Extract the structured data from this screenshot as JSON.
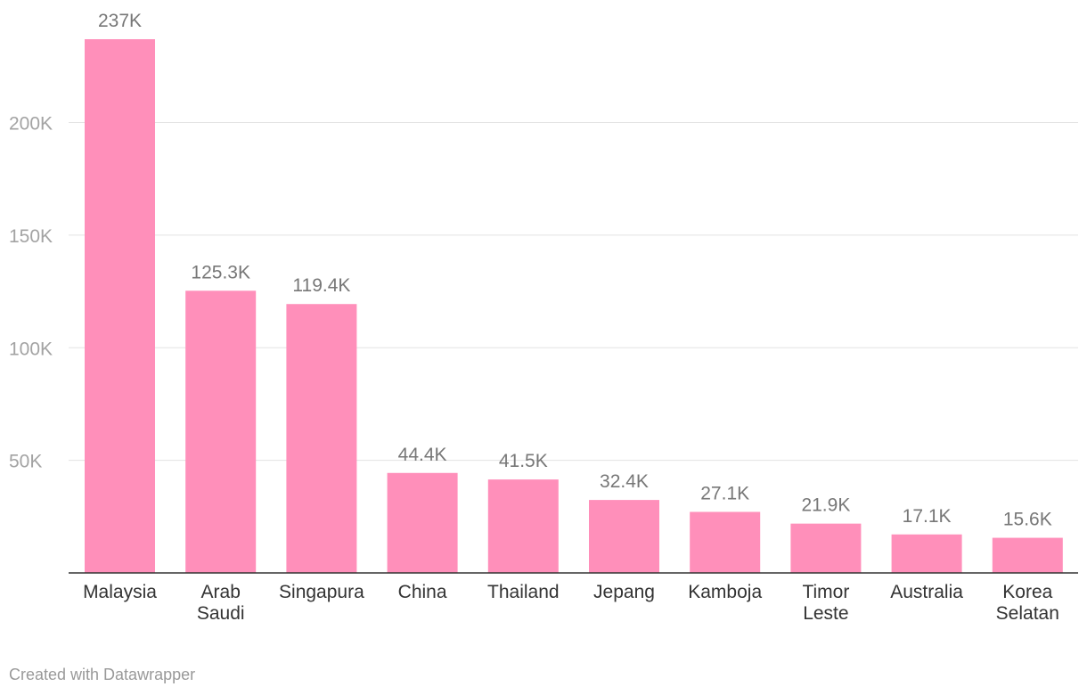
{
  "chart_data": {
    "type": "bar",
    "categories": [
      [
        "Malaysia"
      ],
      [
        "Arab",
        "Saudi"
      ],
      [
        "Singapura"
      ],
      [
        "China"
      ],
      [
        "Thailand"
      ],
      [
        "Jepang"
      ],
      [
        "Kamboja"
      ],
      [
        "Timor",
        "Leste"
      ],
      [
        "Australia"
      ],
      [
        "Korea",
        "Selatan"
      ]
    ],
    "values": [
      237000,
      125300,
      119400,
      44400,
      41500,
      32400,
      27100,
      21900,
      17100,
      15600
    ],
    "value_labels": [
      "237K",
      "125.3K",
      "119.4K",
      "44.4K",
      "41.5K",
      "32.4K",
      "27.1K",
      "21.9K",
      "17.1K",
      "15.6K"
    ],
    "y_ticks": [
      50000,
      100000,
      150000,
      200000
    ],
    "y_tick_labels": [
      "50K",
      "100K",
      "150K",
      "200K"
    ],
    "ylim": [
      0,
      237000
    ],
    "title": "",
    "xlabel": "",
    "ylabel": "",
    "grid": true,
    "bar_color": "#ff8fba"
  },
  "footer": {
    "credit": "Created with Datawrapper"
  }
}
